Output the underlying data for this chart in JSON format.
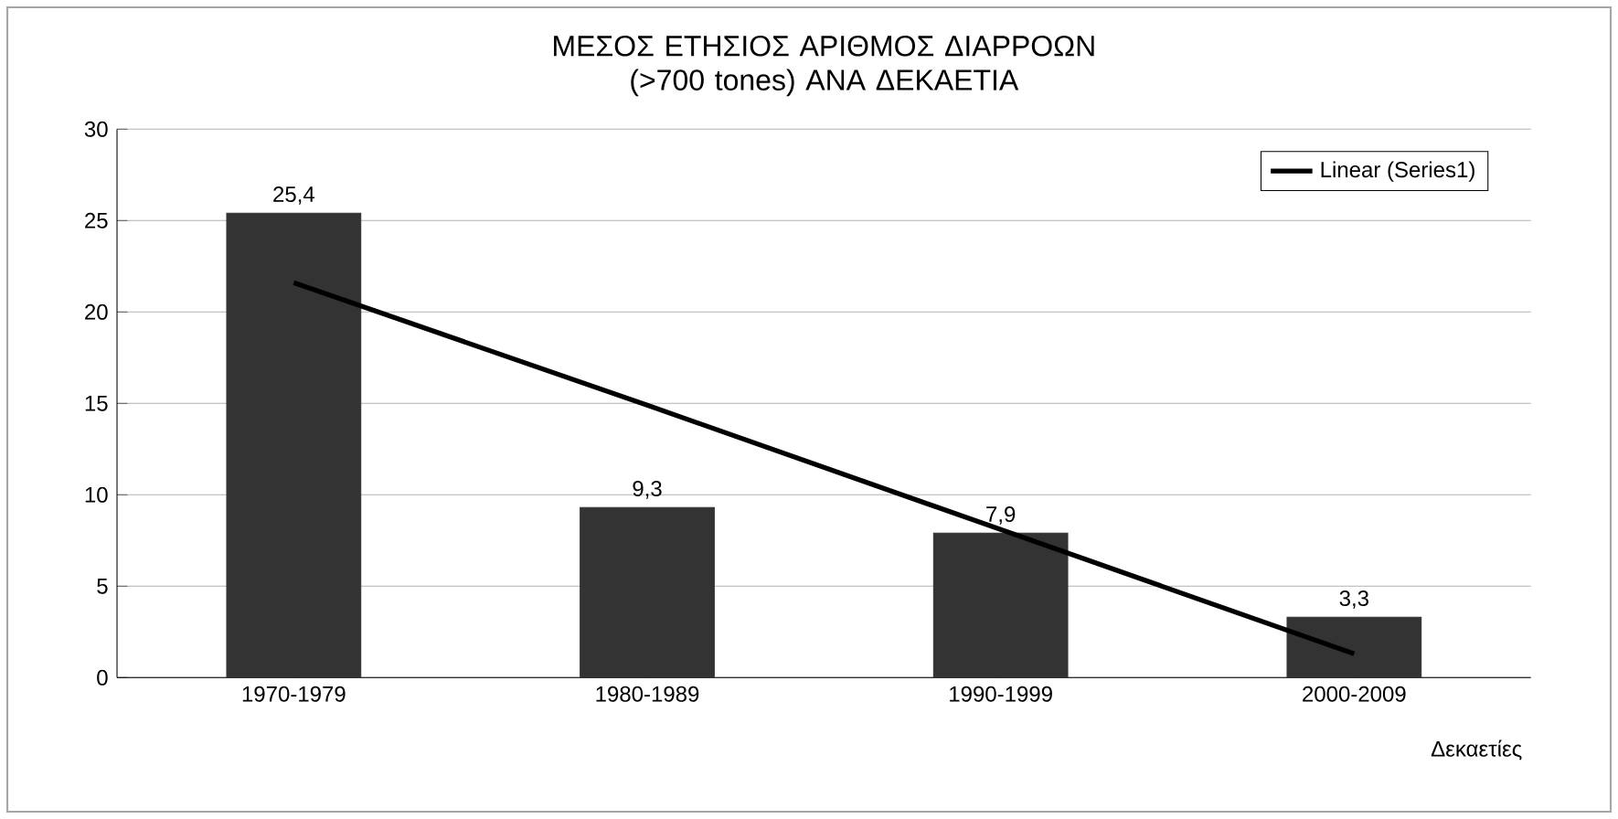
{
  "chart_data": {
    "type": "bar",
    "title": "ΜΕΣΟΣ ΕΤΗΣΙΟΣ ΑΡΙΘΜΟΣ ΔΙΑΡΡΟΩΝ (>700 tones) ΑΝΑ ΔΕΚΑΕΤΙΑ",
    "xlabel": "Δεκαετίες",
    "categories": [
      "1970-1979",
      "1980-1989",
      "1990-1999",
      "2000-2009"
    ],
    "series": [
      {
        "color": "#333333",
        "values": [
          25.4,
          9.3,
          7.9,
          3.3
        ],
        "value_labels": [
          "25,4",
          "9,3",
          "7,9",
          "3,3"
        ]
      },
      {
        "type": "line",
        "name": "Linear (Series1)",
        "color": "#000000",
        "values": [
          21.6,
          14.9,
          8.1,
          1.3
        ]
      }
    ],
    "ylim": [
      0,
      30
    ],
    "yticks": [
      0,
      5,
      10,
      15,
      20,
      25,
      30
    ],
    "grid": "y",
    "legend": "top right"
  }
}
